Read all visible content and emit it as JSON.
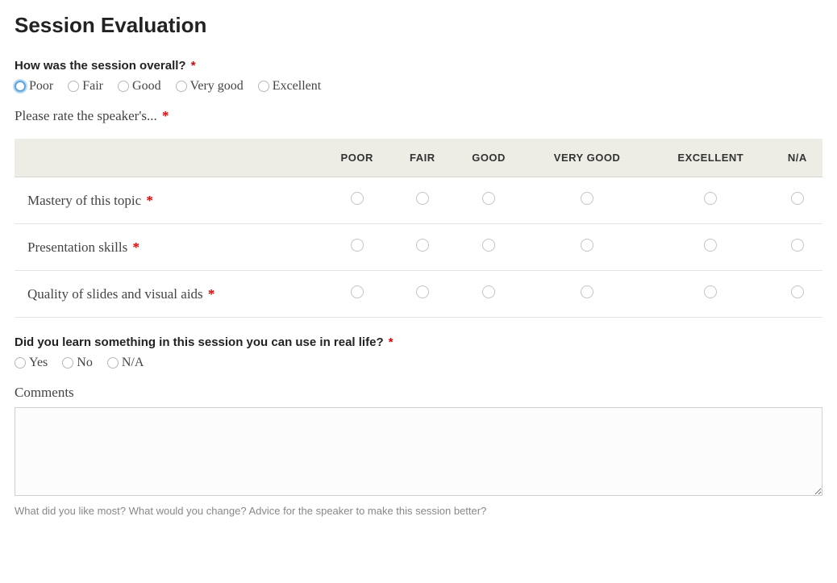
{
  "title": "Session Evaluation",
  "q1": {
    "label": "How was the session overall?",
    "required": true,
    "options": [
      "Poor",
      "Fair",
      "Good",
      "Very good",
      "Excellent"
    ],
    "focused_index": 0
  },
  "q2": {
    "prompt": "Please rate the speaker's...",
    "required": true,
    "columns": [
      "POOR",
      "FAIR",
      "GOOD",
      "VERY GOOD",
      "EXCELLENT",
      "N/A"
    ],
    "rows": [
      {
        "label": "Mastery of this topic",
        "required": true
      },
      {
        "label": "Presentation skills",
        "required": true
      },
      {
        "label": "Quality of slides and visual aids",
        "required": true
      }
    ]
  },
  "q3": {
    "label": "Did you learn something in this session you can use in real life?",
    "required": true,
    "options": [
      "Yes",
      "No",
      "N/A"
    ]
  },
  "q4": {
    "label": "Comments",
    "hint": "What did you like most? What would you change? Advice for the speaker to make this session better?"
  },
  "asterisk": "*",
  "colors": {
    "required": "#e00000",
    "header_bg": "#edece5",
    "focus_ring": "#5aa4e0",
    "text": "#333333",
    "muted": "#888888"
  }
}
